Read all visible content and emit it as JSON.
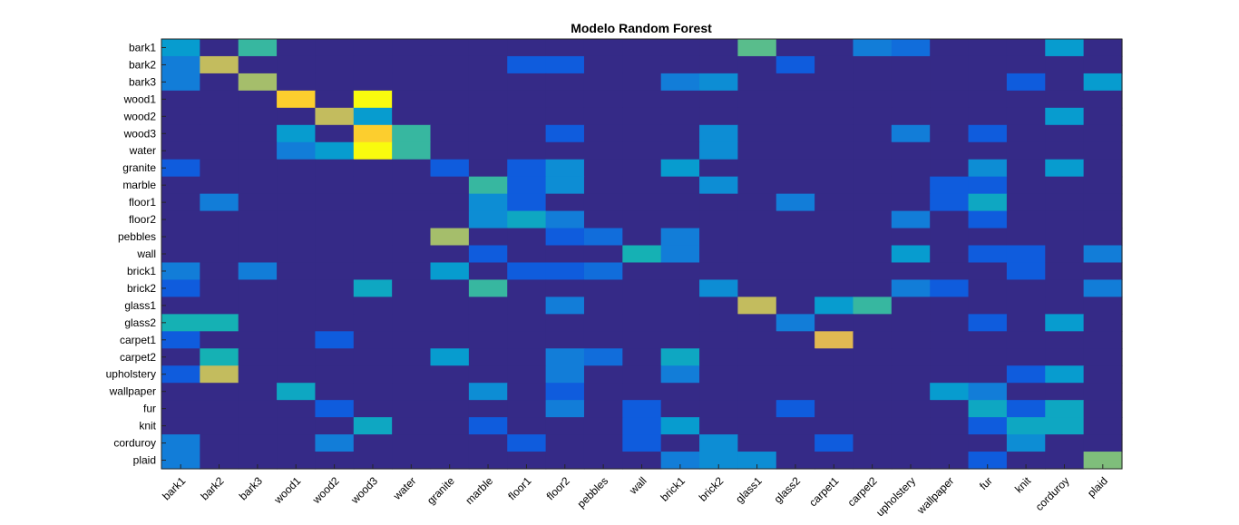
{
  "chart_data": {
    "type": "heatmap",
    "title": "Modelo Random Forest",
    "xlabel": "",
    "ylabel": "",
    "categories_x": [
      "bark1",
      "bark2",
      "bark3",
      "wood1",
      "wood2",
      "wood3",
      "water",
      "granite",
      "marble",
      "floor1",
      "floor2",
      "pebbles",
      "wall",
      "brick1",
      "brick2",
      "glass1",
      "glass2",
      "carpet1",
      "carpet2",
      "upholstery",
      "wallpaper",
      "fur",
      "knit",
      "corduroy",
      "plaid"
    ],
    "categories_y": [
      "bark1",
      "bark2",
      "bark3",
      "wood1",
      "wood2",
      "wood3",
      "water",
      "granite",
      "marble",
      "floor1",
      "floor2",
      "pebbles",
      "wall",
      "brick1",
      "brick2",
      "glass1",
      "glass2",
      "carpet1",
      "carpet2",
      "upholstery",
      "wallpaper",
      "fur",
      "knit",
      "corduroy",
      "plaid"
    ],
    "colormap": "parula",
    "value_range": [
      0,
      1
    ],
    "grid": false,
    "legend": "none",
    "values": [
      [
        0.3,
        0,
        0.45,
        0,
        0,
        0,
        0,
        0,
        0,
        0,
        0,
        0,
        0,
        0,
        0,
        0.5,
        0,
        0,
        0.2,
        0.15,
        0,
        0,
        0,
        0.3,
        0
      ],
      [
        0.2,
        0.65,
        0,
        0,
        0,
        0,
        0,
        0,
        0,
        0.1,
        0.1,
        0,
        0,
        0,
        0,
        0,
        0.1,
        0,
        0,
        0,
        0,
        0,
        0,
        0,
        0
      ],
      [
        0.2,
        0,
        0.6,
        0,
        0,
        0,
        0,
        0,
        0,
        0,
        0,
        0,
        0,
        0.2,
        0.25,
        0,
        0,
        0,
        0,
        0,
        0,
        0,
        0.1,
        0,
        0.3
      ],
      [
        0,
        0,
        0,
        0.8,
        0,
        1,
        0,
        0,
        0,
        0,
        0,
        0,
        0,
        0,
        0,
        0,
        0,
        0,
        0,
        0,
        0,
        0,
        0,
        0,
        0
      ],
      [
        0,
        0,
        0,
        0,
        0.65,
        0.3,
        0,
        0,
        0,
        0,
        0,
        0,
        0,
        0,
        0,
        0,
        0,
        0,
        0,
        0,
        0,
        0,
        0,
        0.3,
        0
      ],
      [
        0,
        0,
        0,
        0.3,
        0,
        0.8,
        0.45,
        0,
        0,
        0,
        0.1,
        0,
        0,
        0,
        0.25,
        0,
        0,
        0,
        0,
        0.2,
        0,
        0.1,
        0,
        0,
        0
      ],
      [
        0,
        0,
        0,
        0.2,
        0.3,
        1,
        0.45,
        0,
        0,
        0,
        0,
        0,
        0,
        0,
        0.25,
        0,
        0,
        0,
        0,
        0,
        0,
        0,
        0,
        0,
        0
      ],
      [
        0.1,
        0,
        0,
        0,
        0,
        0,
        0,
        0.1,
        0,
        0.1,
        0.25,
        0,
        0,
        0.3,
        0,
        0,
        0,
        0,
        0,
        0,
        0,
        0.25,
        0,
        0.3,
        0
      ],
      [
        0,
        0,
        0,
        0,
        0,
        0,
        0,
        0,
        0.45,
        0.1,
        0.25,
        0,
        0,
        0,
        0.25,
        0,
        0,
        0,
        0,
        0,
        0.1,
        0.1,
        0,
        0,
        0
      ],
      [
        0,
        0.2,
        0,
        0,
        0,
        0,
        0,
        0,
        0.25,
        0.1,
        0,
        0,
        0,
        0,
        0,
        0,
        0.2,
        0,
        0,
        0,
        0.1,
        0.35,
        0,
        0,
        0
      ],
      [
        0,
        0,
        0,
        0,
        0,
        0,
        0,
        0,
        0.25,
        0.35,
        0.2,
        0,
        0,
        0,
        0,
        0,
        0,
        0,
        0,
        0.2,
        0,
        0.1,
        0,
        0,
        0
      ],
      [
        0,
        0,
        0,
        0,
        0,
        0,
        0,
        0.6,
        0,
        0,
        0.1,
        0.15,
        0,
        0.2,
        0,
        0,
        0,
        0,
        0,
        0,
        0,
        0,
        0,
        0,
        0
      ],
      [
        0,
        0,
        0,
        0,
        0,
        0,
        0,
        0,
        0.1,
        0,
        0,
        0,
        0.4,
        0.2,
        0,
        0,
        0,
        0,
        0,
        0.3,
        0,
        0.1,
        0.1,
        0,
        0.2
      ],
      [
        0.2,
        0,
        0.2,
        0,
        0,
        0,
        0,
        0.3,
        0,
        0.1,
        0.1,
        0.15,
        0,
        0,
        0,
        0,
        0,
        0,
        0,
        0,
        0,
        0,
        0.1,
        0,
        0
      ],
      [
        0.1,
        0,
        0,
        0,
        0,
        0.35,
        0,
        0,
        0.45,
        0,
        0,
        0,
        0,
        0,
        0.25,
        0,
        0,
        0,
        0,
        0.2,
        0.1,
        0,
        0,
        0,
        0.2
      ],
      [
        0,
        0,
        0,
        0,
        0,
        0,
        0,
        0,
        0,
        0,
        0.2,
        0,
        0,
        0,
        0,
        0.65,
        0,
        0.3,
        0.45,
        0,
        0,
        0,
        0,
        0,
        0
      ],
      [
        0.4,
        0.4,
        0,
        0,
        0,
        0,
        0,
        0,
        0,
        0,
        0,
        0,
        0,
        0,
        0,
        0,
        0.2,
        0,
        0,
        0,
        0,
        0.1,
        0,
        0.3,
        0
      ],
      [
        0.1,
        0,
        0,
        0,
        0.1,
        0,
        0,
        0,
        0,
        0,
        0,
        0,
        0,
        0,
        0,
        0,
        0,
        0.7,
        0,
        0,
        0,
        0,
        0,
        0,
        0
      ],
      [
        0,
        0.4,
        0,
        0,
        0,
        0,
        0,
        0.3,
        0,
        0,
        0.2,
        0.15,
        0,
        0.35,
        0,
        0,
        0,
        0,
        0,
        0,
        0,
        0,
        0,
        0,
        0
      ],
      [
        0.1,
        0.65,
        0,
        0,
        0,
        0,
        0,
        0,
        0,
        0,
        0.2,
        0,
        0,
        0.2,
        0,
        0,
        0,
        0,
        0,
        0,
        0,
        0,
        0.1,
        0.3,
        0
      ],
      [
        0,
        0,
        0,
        0.35,
        0,
        0,
        0,
        0,
        0.25,
        0,
        0.1,
        0,
        0,
        0,
        0,
        0,
        0,
        0,
        0,
        0,
        0.3,
        0.2,
        0,
        0,
        0
      ],
      [
        0,
        0,
        0,
        0,
        0.1,
        0,
        0,
        0,
        0,
        0,
        0.2,
        0,
        0.1,
        0,
        0,
        0,
        0.1,
        0,
        0,
        0,
        0,
        0.35,
        0.1,
        0.35,
        0
      ],
      [
        0,
        0,
        0,
        0,
        0,
        0.35,
        0,
        0,
        0.1,
        0,
        0,
        0,
        0.1,
        0.3,
        0,
        0,
        0,
        0,
        0,
        0,
        0,
        0.1,
        0.35,
        0.35,
        0
      ],
      [
        0.2,
        0,
        0,
        0,
        0.2,
        0,
        0,
        0,
        0,
        0.1,
        0,
        0,
        0.1,
        0,
        0.25,
        0,
        0,
        0.1,
        0,
        0,
        0,
        0,
        0.25,
        0,
        0
      ],
      [
        0.2,
        0,
        0,
        0,
        0,
        0,
        0,
        0,
        0,
        0,
        0,
        0,
        0,
        0.2,
        0.25,
        0.25,
        0,
        0,
        0,
        0,
        0,
        0.1,
        0,
        0,
        0.55
      ]
    ]
  }
}
